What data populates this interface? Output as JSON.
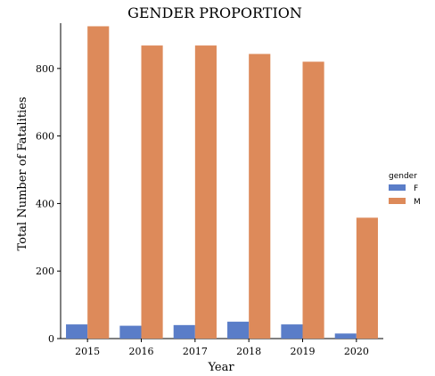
{
  "chart_data": {
    "type": "bar",
    "title": "GENDER PROPORTION",
    "xlabel": "Year",
    "ylabel": "Total Number of Fatalities",
    "categories": [
      "2015",
      "2016",
      "2017",
      "2018",
      "2019",
      "2020"
    ],
    "series": [
      {
        "name": "F",
        "color": "#5a7dc8",
        "values": [
          42,
          38,
          40,
          50,
          42,
          15
        ]
      },
      {
        "name": "M",
        "color": "#dd8a5a",
        "values": [
          925,
          868,
          868,
          843,
          820,
          358
        ]
      }
    ],
    "ylim": [
      0,
      950
    ],
    "yticks": [
      0,
      200,
      400,
      600,
      800
    ],
    "grid": false,
    "legend": {
      "title": "gender",
      "placement": "right"
    }
  }
}
